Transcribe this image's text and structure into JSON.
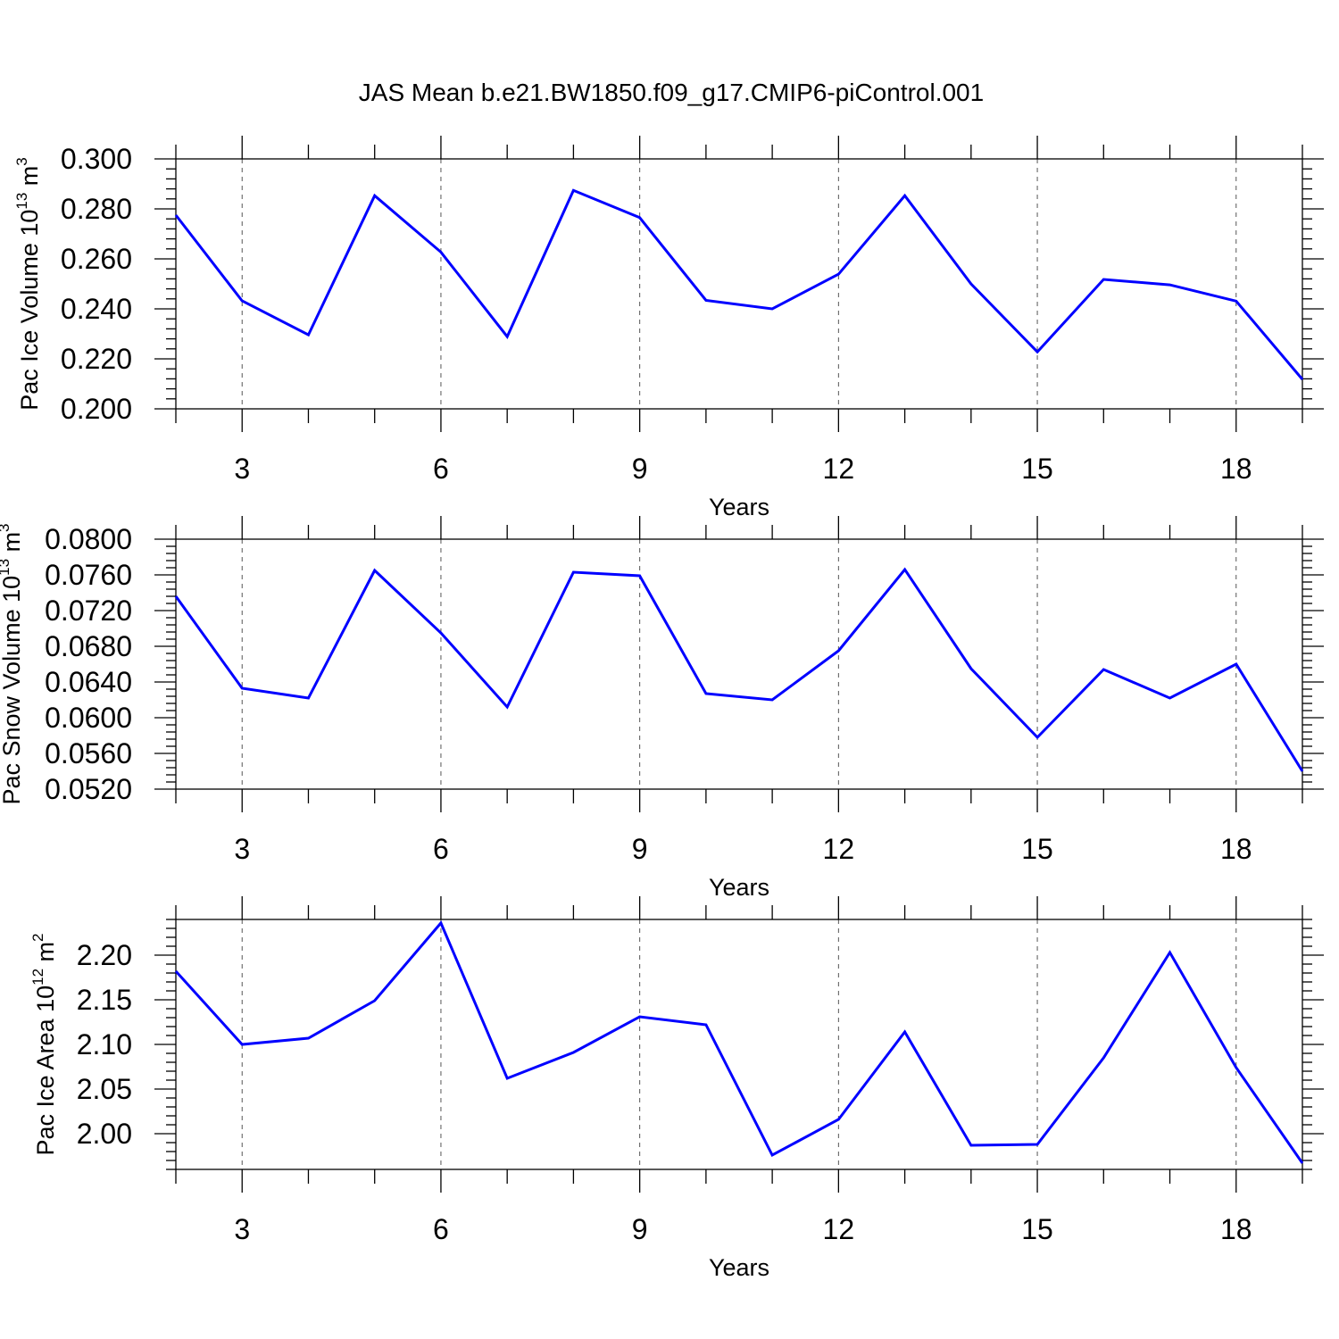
{
  "title": "JAS Mean b.e21.BW1850.f09_g17.CMIP6-piControl.001",
  "series_color": "#0000ff",
  "chart_data": [
    {
      "type": "line",
      "id": "ice-volume",
      "ylabel_main": "Pac Ice Volume 10",
      "ylabel_exp": "13",
      "ylabel_unit": " m",
      "ylabel_unit_exp": "3",
      "xlabel": "Years",
      "xlim": [
        2,
        19
      ],
      "ylim": [
        0.2,
        0.3
      ],
      "yticks": [
        "0.200",
        "0.220",
        "0.240",
        "0.260",
        "0.280",
        "0.300"
      ],
      "ytick_values": [
        0.2,
        0.22,
        0.24,
        0.26,
        0.28,
        0.3
      ],
      "xticks": [
        "3",
        "6",
        "9",
        "12",
        "15",
        "18"
      ],
      "xtick_values": [
        3,
        6,
        9,
        12,
        15,
        18
      ],
      "grid": "vertical-dashed",
      "x": [
        2,
        3,
        4,
        5,
        6,
        7,
        8,
        9,
        10,
        11,
        12,
        13,
        14,
        15,
        16,
        17,
        18,
        19
      ],
      "y": [
        0.2775,
        0.2432,
        0.2296,
        0.2853,
        0.2627,
        0.2289,
        0.2874,
        0.2765,
        0.2434,
        0.24,
        0.2539,
        0.2853,
        0.25,
        0.2228,
        0.2518,
        0.2496,
        0.2431,
        0.2118
      ]
    },
    {
      "type": "line",
      "id": "snow-volume",
      "ylabel_main": "Pac Snow Volume 10",
      "ylabel_exp": "13",
      "ylabel_unit": " m",
      "ylabel_unit_exp": "3",
      "xlabel": "Years",
      "xlim": [
        2,
        19
      ],
      "ylim": [
        0.052,
        0.08
      ],
      "yticks": [
        "0.0520",
        "0.0560",
        "0.0600",
        "0.0640",
        "0.0680",
        "0.0720",
        "0.0760",
        "0.0800"
      ],
      "ytick_values": [
        0.052,
        0.056,
        0.06,
        0.064,
        0.068,
        0.072,
        0.076,
        0.08
      ],
      "xticks": [
        "3",
        "6",
        "9",
        "12",
        "15",
        "18"
      ],
      "xtick_values": [
        3,
        6,
        9,
        12,
        15,
        18
      ],
      "grid": "vertical-dashed",
      "x": [
        2,
        3,
        4,
        5,
        6,
        7,
        8,
        9,
        10,
        11,
        12,
        13,
        14,
        15,
        16,
        17,
        18,
        19
      ],
      "y": [
        0.0736,
        0.0633,
        0.0622,
        0.0765,
        0.0695,
        0.0612,
        0.0763,
        0.0759,
        0.0627,
        0.062,
        0.0675,
        0.0766,
        0.0655,
        0.0578,
        0.0654,
        0.0622,
        0.066,
        0.054
      ]
    },
    {
      "type": "line",
      "id": "ice-area",
      "ylabel_main": "Pac Ice Area 10",
      "ylabel_exp": "12",
      "ylabel_unit": " m",
      "ylabel_unit_exp": "2",
      "xlabel": "Years",
      "xlim": [
        2,
        19
      ],
      "ylim": [
        1.96,
        2.24
      ],
      "yticks": [
        "2.00",
        "2.05",
        "2.10",
        "2.15",
        "2.20"
      ],
      "ytick_values": [
        2.0,
        2.05,
        2.1,
        2.15,
        2.2
      ],
      "xticks": [
        "3",
        "6",
        "9",
        "12",
        "15",
        "18"
      ],
      "xtick_values": [
        3,
        6,
        9,
        12,
        15,
        18
      ],
      "grid": "vertical-dashed",
      "x": [
        2,
        3,
        4,
        5,
        6,
        7,
        8,
        9,
        10,
        11,
        12,
        13,
        14,
        15,
        16,
        17,
        18,
        19
      ],
      "y": [
        2.182,
        2.1,
        2.107,
        2.149,
        2.236,
        2.062,
        2.091,
        2.131,
        2.122,
        1.976,
        2.016,
        2.114,
        1.987,
        1.988,
        2.085,
        2.203,
        2.074,
        1.967
      ]
    }
  ]
}
